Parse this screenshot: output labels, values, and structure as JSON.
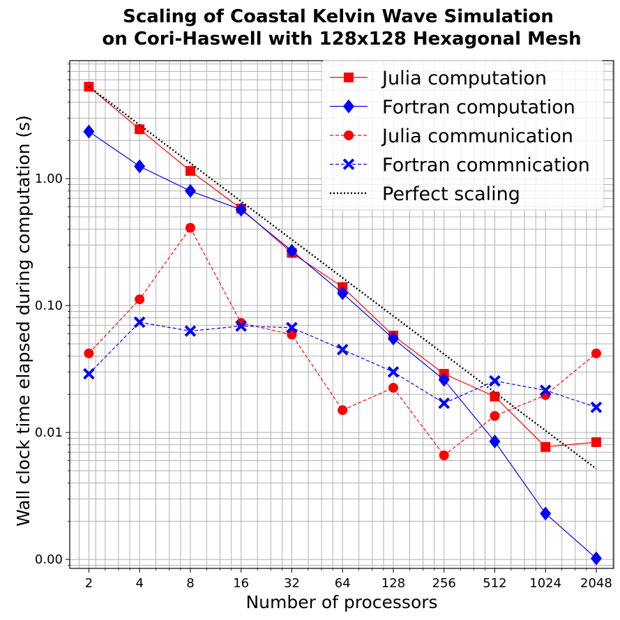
{
  "chart_data": {
    "type": "line",
    "title_lines": [
      "Scaling of Coastal Kelvin Wave Simulation",
      "on Cori-Haswell with 128x128 Hexagonal Mesh"
    ],
    "xlabel": "Number of processors",
    "ylabel": "Wall clock time elapsed during computation (s)",
    "x_scale": "log2",
    "y_scale": "log10",
    "x": [
      2,
      4,
      8,
      16,
      32,
      64,
      128,
      256,
      512,
      1024,
      2048
    ],
    "x_tick_labels": [
      "2",
      "4",
      "8",
      "16",
      "32",
      "64",
      "128",
      "256",
      "512",
      "1024",
      "2048"
    ],
    "xlim": [
      1.54,
      2600
    ],
    "ylim": [
      0.00085,
      8.5
    ],
    "y_ticks": [
      0.001,
      0.01,
      0.1,
      1.0
    ],
    "y_tick_labels": [
      "0.00",
      "0.01",
      "0.10",
      "1.00"
    ],
    "grid": true,
    "legend_position": "top-right",
    "series": [
      {
        "name": "Julia computation",
        "color": "#ff0000",
        "line_style": "solid",
        "marker": "square",
        "values": [
          5.3,
          2.45,
          1.15,
          0.58,
          0.26,
          0.14,
          0.058,
          0.029,
          0.0192,
          0.0077,
          0.0084
        ]
      },
      {
        "name": "Fortran computation",
        "color": "#0000ff",
        "line_style": "solid",
        "marker": "diamond",
        "values": [
          2.35,
          1.25,
          0.8,
          0.57,
          0.27,
          0.125,
          0.055,
          0.026,
          0.0085,
          0.0023,
          0.00102
        ]
      },
      {
        "name": "Julia communication",
        "color": "#ff0000",
        "line_style": "dashed",
        "marker": "circle",
        "values": [
          0.042,
          0.112,
          0.41,
          0.073,
          0.059,
          0.015,
          0.0225,
          0.0066,
          0.0135,
          0.0197,
          0.042
        ]
      },
      {
        "name": "Fortran commnication",
        "color": "#0000ff",
        "line_style": "dashed",
        "marker": "x",
        "values": [
          0.029,
          0.074,
          0.063,
          0.069,
          0.067,
          0.045,
          0.03,
          0.017,
          0.0255,
          0.0215,
          0.0158
        ]
      },
      {
        "name": "Perfect scaling",
        "color": "#000000",
        "line_style": "dotted",
        "marker": "none",
        "values": [
          5.3,
          2.65,
          1.325,
          0.6625,
          0.33125,
          0.165625,
          0.0828,
          0.0414,
          0.0207,
          0.01035,
          0.005176
        ]
      }
    ]
  }
}
